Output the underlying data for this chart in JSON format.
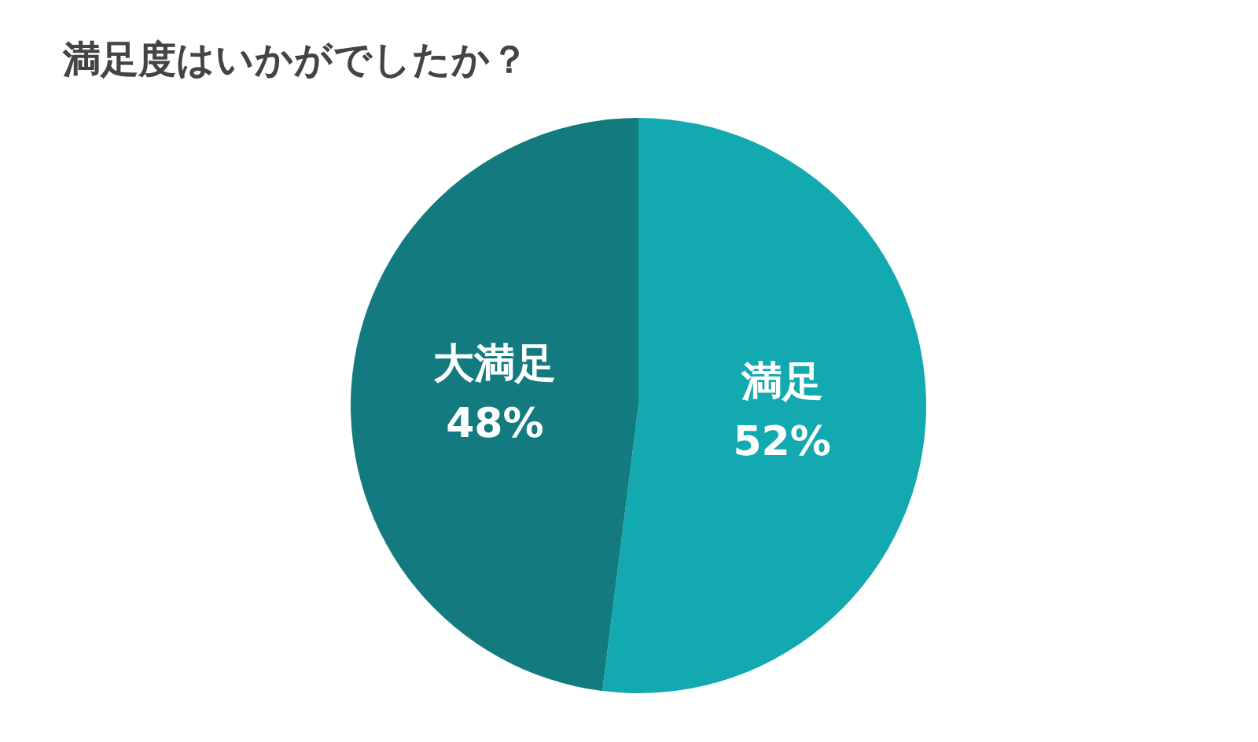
{
  "chart_data": {
    "type": "pie",
    "title": "満足度はいかがでしたか？",
    "categories": [
      "満足",
      "大満足"
    ],
    "values": [
      52,
      48
    ],
    "colors": [
      "#12a9b0",
      "#137b80"
    ],
    "value_labels": [
      "52%",
      "48%"
    ],
    "legend": false
  }
}
